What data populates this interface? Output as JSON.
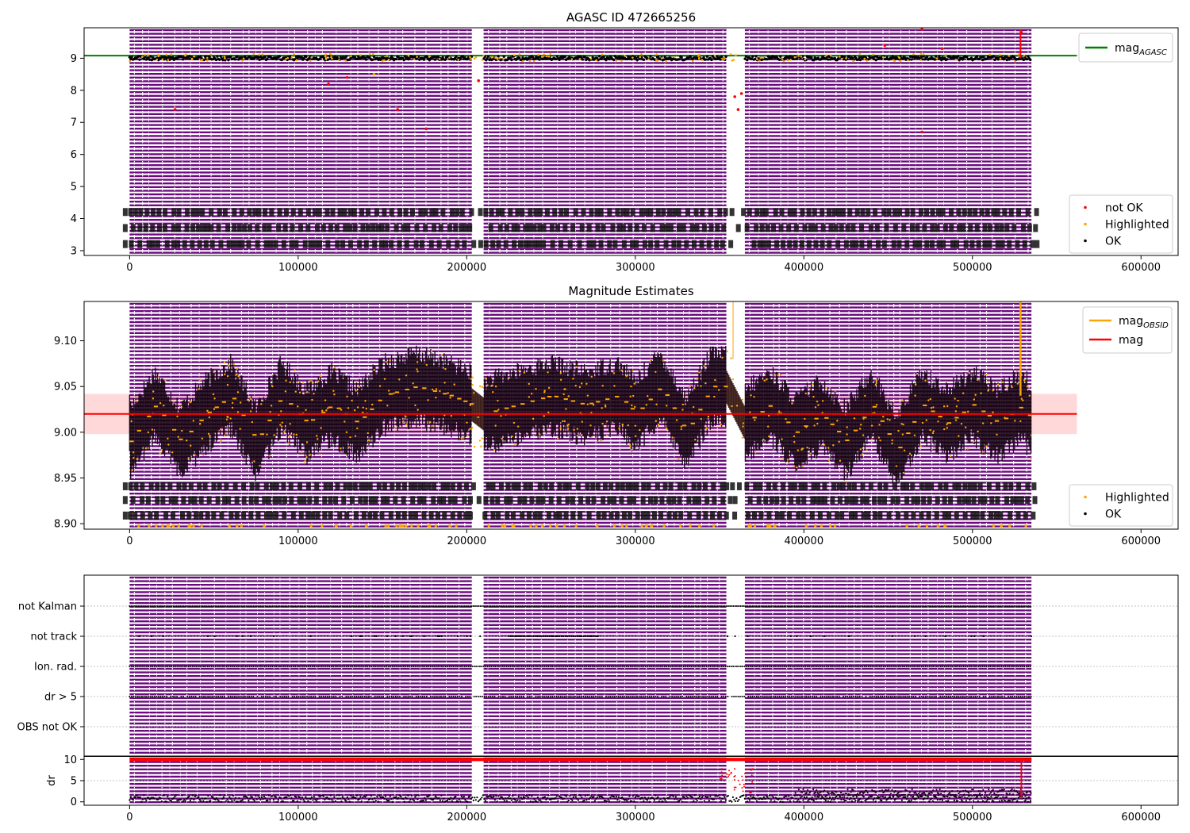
{
  "figure": {
    "background": "#ffffff"
  },
  "colors": {
    "purple": "#6a0a7d",
    "white_bars": "#ffffff",
    "ok": "#000000",
    "highlighted": "#ffa500",
    "not_ok": "#ff0000",
    "mag_agasc_line": "#008000",
    "mag_line": "#ff0000",
    "mag_band": "#ffd9d9",
    "mag_obsid": "#ffa500",
    "grid": "#b0b0b0"
  },
  "chart_data": [
    {
      "id": "top",
      "type": "scatter",
      "title": "AGASC ID 472665256",
      "xlim": [
        -27000,
        622000
      ],
      "ylim": [
        2.85,
        9.95
      ],
      "xticks": [
        0,
        100000,
        200000,
        300000,
        400000,
        500000,
        600000
      ],
      "yticks": [
        3,
        4,
        5,
        6,
        7,
        8,
        9
      ],
      "data_xrange": [
        0,
        535000
      ],
      "gaps": [
        [
          203000,
          210000
        ],
        [
          354000,
          365000
        ]
      ],
      "mag_agasc": 9.08,
      "main_level": 9.0,
      "outlier_points": [
        {
          "x": 27000,
          "y": 7.4,
          "cls": "not_ok"
        },
        {
          "x": 118000,
          "y": 8.2,
          "cls": "not_ok"
        },
        {
          "x": 129000,
          "y": 8.4,
          "cls": "not_ok"
        },
        {
          "x": 145000,
          "y": 8.5,
          "cls": "highlighted"
        },
        {
          "x": 159000,
          "y": 7.4,
          "cls": "not_ok"
        },
        {
          "x": 176000,
          "y": 6.8,
          "cls": "not_ok"
        },
        {
          "x": 207000,
          "y": 8.3,
          "cls": "not_ok"
        },
        {
          "x": 359000,
          "y": 7.8,
          "cls": "not_ok"
        },
        {
          "x": 361000,
          "y": 7.4,
          "cls": "not_ok"
        },
        {
          "x": 363000,
          "y": 7.9,
          "cls": "not_ok"
        },
        {
          "x": 448000,
          "y": 9.4,
          "cls": "not_ok"
        },
        {
          "x": 470000,
          "y": 6.7,
          "cls": "not_ok"
        },
        {
          "x": 470000,
          "y": 9.9,
          "cls": "not_ok"
        },
        {
          "x": 482000,
          "y": 9.3,
          "cls": "not_ok"
        },
        {
          "x": 529000,
          "y": 9.8,
          "cls": "not_ok"
        }
      ],
      "legend_upper": [
        {
          "label": "mag",
          "sub": "AGASC",
          "color": "#008000",
          "kind": "line"
        }
      ],
      "legend_lower": [
        {
          "label": "not OK",
          "color": "#ff0000",
          "kind": "dot"
        },
        {
          "label": "Highlighted",
          "color": "#ffa500",
          "kind": "dot"
        },
        {
          "label": "OK",
          "color": "#000000",
          "kind": "dot"
        }
      ],
      "label_rows": [
        4.18,
        3.68,
        3.18
      ]
    },
    {
      "id": "middle",
      "type": "scatter",
      "title": "Magnitude Estimates",
      "xlim": [
        -27000,
        622000
      ],
      "ylim": [
        8.894,
        9.143
      ],
      "xticks": [
        0,
        100000,
        200000,
        300000,
        400000,
        500000,
        600000
      ],
      "yticks": [
        8.9,
        8.95,
        9.0,
        9.05,
        9.1
      ],
      "ytick_labels": [
        "8.90",
        "8.95",
        "9.00",
        "9.05",
        "9.10"
      ],
      "data_xrange": [
        0,
        535000
      ],
      "gaps": [
        [
          203000,
          210000
        ],
        [
          354000,
          365000
        ]
      ],
      "mag": 9.02,
      "mag_band": [
        8.998,
        9.042
      ],
      "envelope": [
        [
          0,
          8.99
        ],
        [
          15000,
          9.03
        ],
        [
          30000,
          8.99
        ],
        [
          45000,
          9.02
        ],
        [
          60000,
          9.04
        ],
        [
          75000,
          8.99
        ],
        [
          90000,
          9.04
        ],
        [
          105000,
          9.01
        ],
        [
          120000,
          9.03
        ],
        [
          135000,
          9.01
        ],
        [
          150000,
          9.04
        ],
        [
          170000,
          9.05
        ],
        [
          190000,
          9.04
        ],
        [
          203000,
          9.03
        ],
        [
          210000,
          9.02
        ],
        [
          230000,
          9.03
        ],
        [
          250000,
          9.04
        ],
        [
          270000,
          9.03
        ],
        [
          290000,
          9.04
        ],
        [
          300000,
          9.02
        ],
        [
          315000,
          9.05
        ],
        [
          330000,
          9.0
        ],
        [
          345000,
          9.05
        ],
        [
          354000,
          9.05
        ],
        [
          365000,
          9.01
        ],
        [
          380000,
          9.03
        ],
        [
          395000,
          9.0
        ],
        [
          410000,
          9.02
        ],
        [
          425000,
          8.99
        ],
        [
          440000,
          9.03
        ],
        [
          455000,
          8.98
        ],
        [
          470000,
          9.03
        ],
        [
          485000,
          9.01
        ],
        [
          500000,
          9.03
        ],
        [
          515000,
          9.01
        ],
        [
          530000,
          9.03
        ],
        [
          535000,
          9.01
        ]
      ],
      "legend_upper": [
        {
          "label": "mag",
          "sub": "OBSID",
          "color": "#ffa500",
          "kind": "line"
        },
        {
          "label": "mag",
          "sub": "",
          "color": "#ff0000",
          "kind": "line"
        }
      ],
      "legend_lower": [
        {
          "label": "Highlighted",
          "color": "#ffa500",
          "kind": "dot"
        },
        {
          "label": "OK",
          "color": "#000000",
          "kind": "dot"
        }
      ],
      "label_rows": [
        8.94,
        8.925,
        8.908
      ]
    },
    {
      "id": "flags",
      "type": "scatter",
      "xlim": [
        -27000,
        622000
      ],
      "data_xrange": [
        0,
        535000
      ],
      "gaps": [
        [
          203000,
          210000
        ],
        [
          354000,
          365000
        ]
      ],
      "categories": [
        "not Kalman",
        "not track",
        "Ion. rad.",
        "dr > 5",
        "OBS not OK"
      ]
    },
    {
      "id": "dr",
      "type": "scatter",
      "ylabel": "dr",
      "xlim": [
        -27000,
        622000
      ],
      "ylim": [
        -0.8,
        10.8
      ],
      "xticks": [
        0,
        100000,
        200000,
        300000,
        400000,
        500000,
        600000
      ],
      "yticks": [
        0,
        5,
        10
      ],
      "data_xrange": [
        0,
        535000
      ],
      "gaps": [
        [
          203000,
          210000
        ],
        [
          354000,
          365000
        ]
      ],
      "threshold": 10
    }
  ]
}
